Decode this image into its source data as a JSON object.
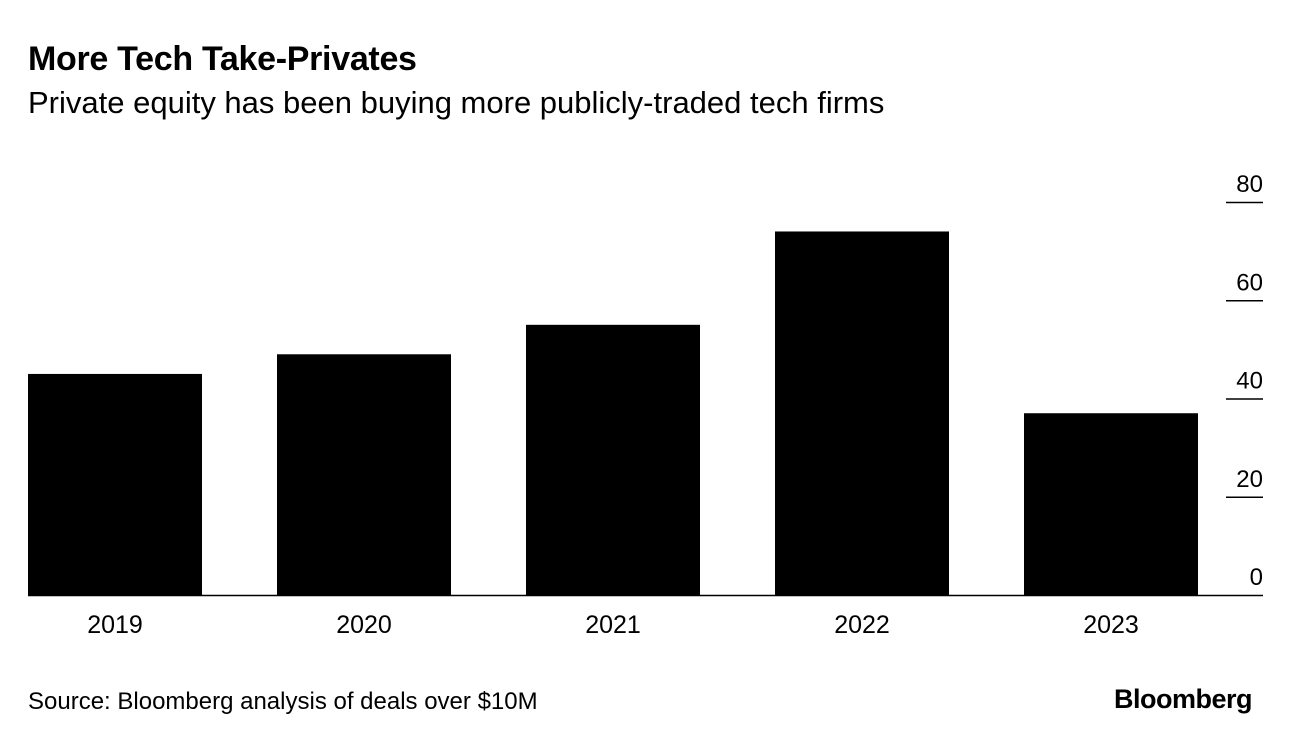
{
  "header": {
    "title": "More Tech Take-Privates",
    "subtitle": "Private equity has been buying more publicly-traded tech firms"
  },
  "footer": {
    "source": "Source: Bloomberg analysis of deals over $10M",
    "logo": "Bloomberg"
  },
  "chart_data": {
    "type": "bar",
    "title": "More Tech Take-Privates",
    "subtitle": "Private equity has been buying more publicly-traded tech firms",
    "categories": [
      "2019",
      "2020",
      "2021",
      "2022",
      "2023"
    ],
    "values": [
      45,
      49,
      55,
      74,
      37
    ],
    "xlabel": "",
    "ylabel": "",
    "ylim": [
      0,
      80
    ],
    "yticks": [
      0,
      20,
      40,
      60,
      80
    ],
    "axis_side": "right",
    "grid": false,
    "legend": "none",
    "bar_color": "#000000"
  }
}
